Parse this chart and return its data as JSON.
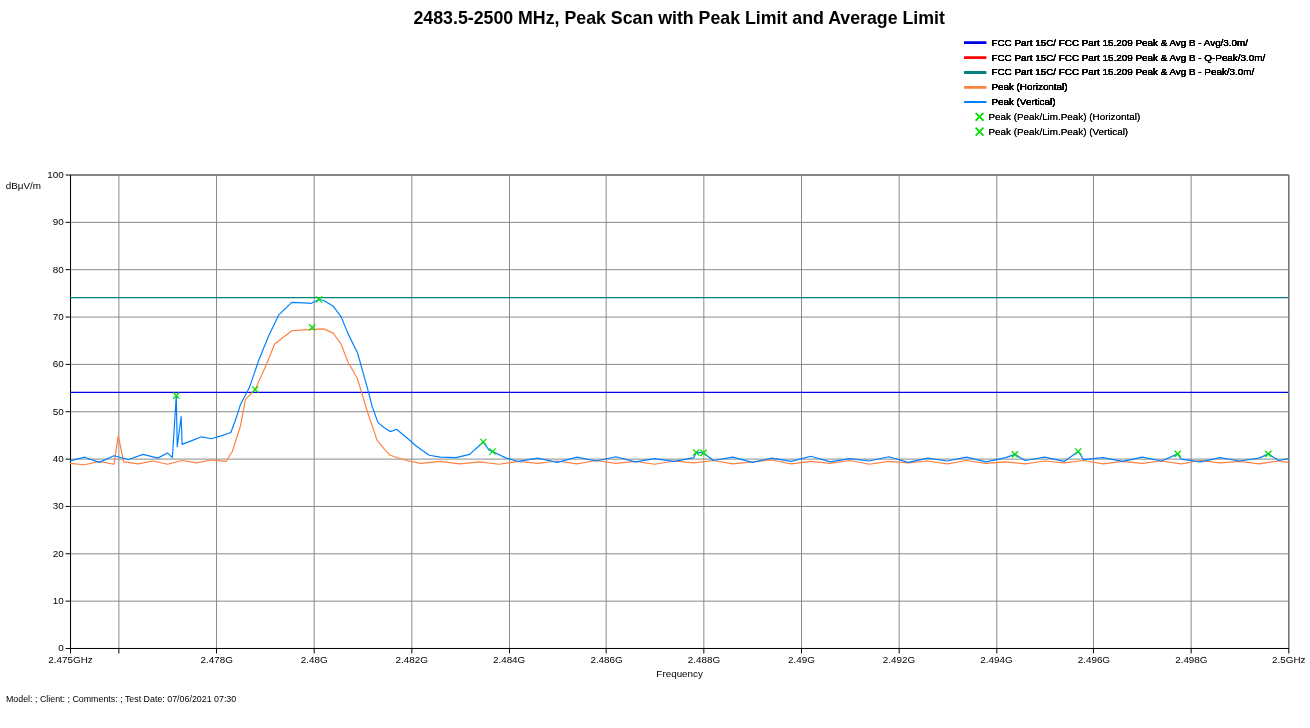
{
  "chart_data": {
    "type": "line",
    "title": "2483.5-2500 MHz, Peak Scan with Peak Limit and Average Limit",
    "xlabel": "Frequency",
    "ylabel": "dBμV/m",
    "xlim": [
      2.475,
      2.5
    ],
    "ylim": [
      0,
      100
    ],
    "xticks": [
      {
        "value": 2.475,
        "label": "2.475GHz"
      },
      {
        "value": 2.476,
        "label": null
      },
      {
        "value": 2.478,
        "label": "2.478G"
      },
      {
        "value": 2.48,
        "label": "2.48G"
      },
      {
        "value": 2.482,
        "label": "2.482G"
      },
      {
        "value": 2.484,
        "label": "2.484G"
      },
      {
        "value": 2.486,
        "label": "2.486G"
      },
      {
        "value": 2.488,
        "label": "2.488G"
      },
      {
        "value": 2.49,
        "label": "2.49G"
      },
      {
        "value": 2.492,
        "label": "2.492G"
      },
      {
        "value": 2.494,
        "label": "2.494G"
      },
      {
        "value": 2.496,
        "label": "2.496G"
      },
      {
        "value": 2.498,
        "label": "2.498G"
      },
      {
        "value": 2.5,
        "label": "2.5GHz"
      }
    ],
    "yticks": [
      0,
      10,
      20,
      30,
      40,
      50,
      60,
      70,
      80,
      90,
      100
    ],
    "grid": true,
    "legend": "top right",
    "line_style": "solid",
    "annotations": [
      "Model: ;  Client: ;  Comments: ;  Test Date:  07/06/2021 07:30"
    ],
    "series": [
      {
        "name": "FCC Part 15C/ FCC Part 15.209 Peak & Avg B - Avg/3.0m/",
        "color": "#0000e6",
        "x": [
          2.475,
          2.5
        ],
        "values": [
          54,
          54
        ]
      },
      {
        "name": "FCC Part 15C/ FCC Part 15.209 Peak & Avg B - Q-Peak/3.0m/",
        "color": "#ff0000"
      },
      {
        "name": "FCC Part 15C/ FCC Part 15.209 Peak & Avg B - Peak/3.0m/",
        "color": "#008080",
        "x": [
          2.475,
          2.5
        ],
        "values": [
          74,
          74
        ]
      },
      {
        "name": "Peak (Horizontal)",
        "color": "#ff8040",
        "x": [
          2.475,
          2.4753,
          2.4756,
          2.4759,
          2.47599,
          2.4761,
          2.4764,
          2.4767,
          2.477,
          2.4773,
          2.4776,
          2.4779,
          2.4782,
          2.47833,
          2.4785,
          2.4786,
          2.4788,
          2.479,
          2.4792,
          2.47955,
          2.4798,
          2.47997,
          2.48021,
          2.4804,
          2.48056,
          2.4807,
          2.4809,
          2.4811,
          2.4813,
          2.48145,
          2.48157,
          2.4819,
          2.4822,
          2.4826,
          2.483,
          2.4834,
          2.4838,
          2.4842,
          2.4846,
          2.485,
          2.4854,
          2.4858,
          2.4862,
          2.4866,
          2.487,
          2.4874,
          2.4878,
          2.4882,
          2.4886,
          2.489,
          2.4894,
          2.4898,
          2.4902,
          2.4906,
          2.491,
          2.4914,
          2.4918,
          2.4922,
          2.4926,
          2.493,
          2.4934,
          2.4938,
          2.4942,
          2.4946,
          2.495,
          2.4954,
          2.4958,
          2.4962,
          2.4966,
          2.497,
          2.4974,
          2.4978,
          2.4982,
          2.4986,
          2.499,
          2.4994,
          2.4998,
          2.5
        ],
        "values": [
          39,
          38.7,
          39.4,
          38.8,
          44.8,
          39.3,
          38.9,
          39.5,
          38.8,
          39.6,
          39.1,
          39.7,
          39.4,
          41.5,
          47,
          52.5,
          54.6,
          59.2,
          64.2,
          67,
          67.2,
          67.3,
          67.4,
          66.5,
          64.2,
          60.5,
          56.8,
          50,
          43.9,
          42,
          40.7,
          39.6,
          39,
          39.4,
          38.9,
          39.3,
          38.8,
          39.4,
          39,
          39.5,
          38.9,
          39.6,
          39,
          39.4,
          38.8,
          39.5,
          39.1,
          39.6,
          38.9,
          39.3,
          39.7,
          38.9,
          39.4,
          39,
          39.6,
          38.8,
          39.4,
          39.1,
          39.5,
          38.9,
          39.6,
          39,
          39.3,
          38.9,
          39.5,
          39.1,
          39.6,
          38.9,
          39.4,
          39,
          39.5,
          38.9,
          39.6,
          39.1,
          39.4,
          38.9,
          39.5,
          39.2
        ]
      },
      {
        "name": "Peak (Vertical)",
        "color": "#0080ff",
        "x": [
          2.475,
          2.4753,
          2.4756,
          2.4759,
          2.4762,
          2.4765,
          2.4768,
          2.477,
          2.4771,
          2.47718,
          2.4772,
          2.47728,
          2.4773,
          2.4775,
          2.4777,
          2.4779,
          2.4781,
          2.4783,
          2.47839,
          2.4785,
          2.47868,
          2.47888,
          2.47908,
          2.47928,
          2.47955,
          2.4798,
          2.47995,
          2.48011,
          2.48021,
          2.4804,
          2.48056,
          2.4807,
          2.4809,
          2.4811,
          2.4812,
          2.48132,
          2.48145,
          2.48157,
          2.4817,
          2.48191,
          2.48211,
          2.48237,
          2.4826,
          2.48292,
          2.4832,
          2.48348,
          2.4836,
          2.48367,
          2.48393,
          2.4842,
          2.4846,
          2.485,
          2.4854,
          2.4858,
          2.4862,
          2.4866,
          2.487,
          2.4874,
          2.4878,
          2.48785,
          2.488,
          2.4882,
          2.4886,
          2.489,
          2.4894,
          2.4898,
          2.4902,
          2.4906,
          2.491,
          2.4914,
          2.4918,
          2.4922,
          2.4926,
          2.493,
          2.4934,
          2.4938,
          2.4942,
          2.49439,
          2.4946,
          2.495,
          2.4954,
          2.49569,
          2.4958,
          2.4962,
          2.4966,
          2.497,
          2.4974,
          2.49773,
          2.4978,
          2.4982,
          2.4986,
          2.499,
          2.4994,
          2.49959,
          2.4998,
          2.5
        ],
        "values": [
          39.5,
          40.3,
          39.2,
          40.6,
          39.8,
          40.9,
          40.1,
          41.2,
          40.2,
          53.3,
          42.5,
          48.9,
          43,
          43.8,
          44.6,
          44.2,
          44.8,
          45.5,
          48,
          51.5,
          55,
          61,
          66,
          70.3,
          73,
          72.9,
          72.8,
          73.6,
          73.4,
          72.2,
          70,
          66.5,
          62.3,
          55,
          51,
          47.6,
          46.5,
          45.7,
          46.2,
          44.4,
          42.6,
          40.7,
          40.3,
          40.2,
          40.9,
          43.5,
          41.8,
          41.5,
          40.2,
          39.4,
          40.1,
          39.2,
          40.3,
          39.5,
          40.4,
          39.3,
          40,
          39.4,
          40.2,
          41.3,
          41.2,
          39.6,
          40.3,
          39.2,
          40.1,
          39.4,
          40.5,
          39.3,
          40,
          39.5,
          40.4,
          39.2,
          40.1,
          39.5,
          40.3,
          39.3,
          40.2,
          40.9,
          39.6,
          40.3,
          39.4,
          41.5,
          39.8,
          40.2,
          39.4,
          40.3,
          39.5,
          41,
          39.9,
          39.3,
          40.2,
          39.5,
          40.1,
          41,
          39.6,
          40
        ]
      },
      {
        "name": "Peak (Peak/Lim.Peak) (Horizontal)",
        "type": "scatter",
        "marker": "cross",
        "color": "#00e000",
        "x": [
          2.4788,
          2.47997
        ],
        "values": [
          54.6,
          67.7
        ]
      },
      {
        "name": "Peak (Peak/Lim.Peak) (Vertical)",
        "type": "scatter",
        "marker": "cross",
        "color": "#00e000",
        "x": [
          2.47718,
          2.48011,
          2.48348,
          2.48367,
          2.48785,
          2.488,
          2.49439,
          2.49569,
          2.49773,
          2.49959
        ],
        "values": [
          53.3,
          73.6,
          43.5,
          41.5,
          41.3,
          41.2,
          40.9,
          41.5,
          41,
          41
        ]
      }
    ]
  }
}
